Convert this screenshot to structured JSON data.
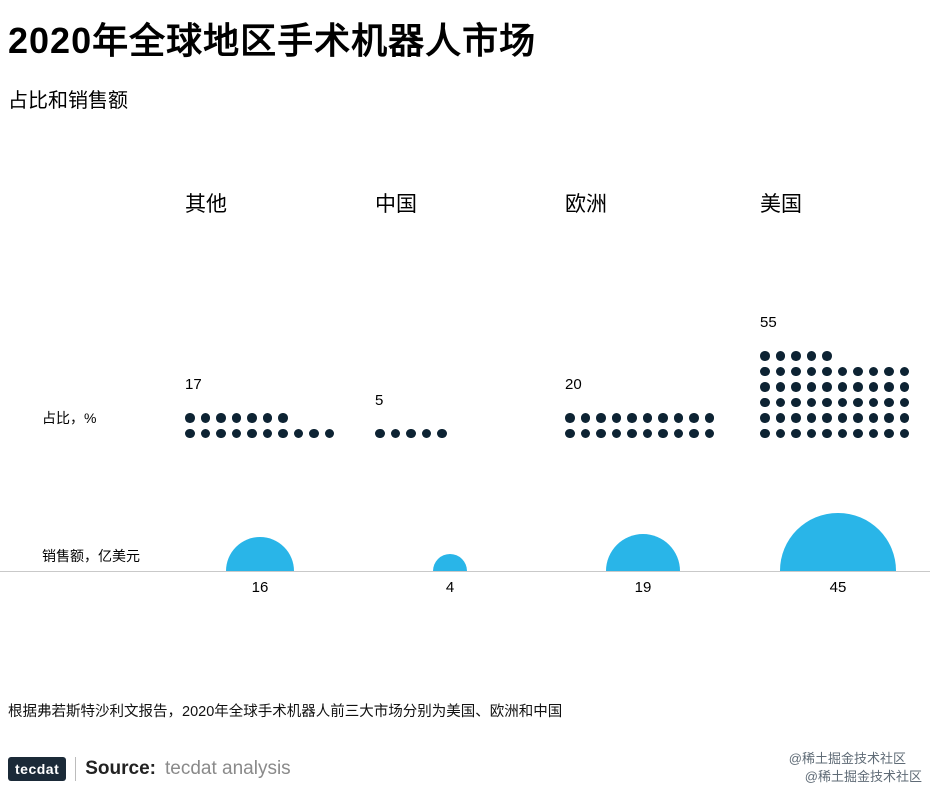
{
  "header": {
    "title": "2020年全球地区手术机器人市场",
    "subtitle": "占比和销售额"
  },
  "chart_data": {
    "type": "pictogram",
    "title": "2020年全球地区手术机器人市场",
    "subtitle": "占比和销售额",
    "categories": [
      "其他",
      "中国",
      "欧洲",
      "美国"
    ],
    "series": [
      {
        "name": "占比，%",
        "type": "dot-grid",
        "dots_per_row": 10,
        "values": [
          17,
          5,
          20,
          55
        ]
      },
      {
        "name": "销售额，亿美元",
        "type": "semicircle-bubble",
        "values": [
          16,
          4,
          19,
          45
        ]
      }
    ],
    "row_labels": {
      "share": "占比，%",
      "sales": "销售额，亿美元"
    },
    "colors": {
      "dot": "#0d2333",
      "bubble": "#29b5e8",
      "baseline": "#c9c9c9"
    },
    "legend_position": "none",
    "grid": false
  },
  "footer": {
    "note": "根据弗若斯特沙利文报告，2020年全球手术机器人前三大市场分别为美国、欧洲和中国",
    "logo": "tecdat",
    "source_label": "Source:",
    "source_value": "tecdat analysis",
    "watermark1": "@稀土掘金技术社区",
    "watermark2": "@稀土掘金技术社区"
  }
}
